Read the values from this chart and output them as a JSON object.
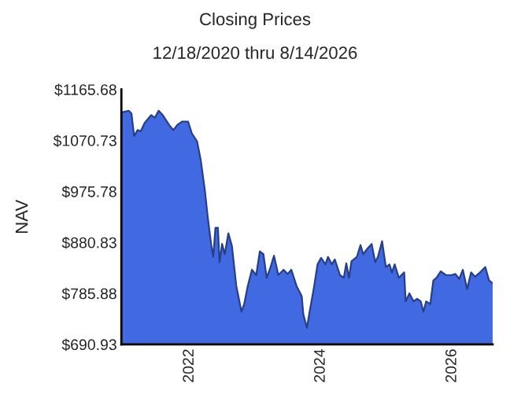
{
  "chart_data": {
    "type": "area",
    "title": "Closing Prices",
    "subtitle": "12/18/2020 thru 8/14/2026",
    "ylabel": "NAV",
    "x": [
      "2020-12-20",
      "2021-01-28",
      "2021-02-12",
      "2021-02-27",
      "2021-03-18",
      "2021-04-05",
      "2021-04-26",
      "2021-06-02",
      "2021-06-22",
      "2021-07-13",
      "2021-08-05",
      "2021-09-09",
      "2021-10-03",
      "2021-10-26",
      "2021-11-22",
      "2021-12-24",
      "2022-01-14",
      "2022-02-12",
      "2022-03-04",
      "2022-03-28",
      "2022-04-11",
      "2022-05-01",
      "2022-05-13",
      "2022-05-25",
      "2022-06-08",
      "2022-06-17",
      "2022-07-01",
      "2022-07-16",
      "2022-08-05",
      "2022-08-25",
      "2022-09-18",
      "2022-10-17",
      "2022-11-01",
      "2022-11-21",
      "2022-12-14",
      "2023-01-07",
      "2023-01-27",
      "2023-02-16",
      "2023-03-06",
      "2023-03-27",
      "2023-04-16",
      "2023-05-10",
      "2023-06-08",
      "2023-07-01",
      "2023-07-21",
      "2023-08-19",
      "2023-09-17",
      "2023-09-26",
      "2023-10-16",
      "2023-10-31",
      "2023-11-23",
      "2023-12-14",
      "2024-01-03",
      "2024-01-27",
      "2024-02-10",
      "2024-03-02",
      "2024-03-19",
      "2024-04-17",
      "2024-05-08",
      "2024-05-22",
      "2024-06-06",
      "2024-06-20",
      "2024-07-20",
      "2024-08-09",
      "2024-08-24",
      "2024-09-16",
      "2024-10-10",
      "2024-10-30",
      "2024-11-14",
      "2024-12-07",
      "2024-12-28",
      "2025-01-17",
      "2025-01-31",
      "2025-02-15",
      "2025-03-10",
      "2025-04-09",
      "2025-04-17",
      "2025-05-08",
      "2025-05-31",
      "2025-06-20",
      "2025-07-10",
      "2025-07-25",
      "2025-08-09",
      "2025-09-01",
      "2025-09-18",
      "2025-10-06",
      "2025-10-29",
      "2025-11-27",
      "2025-12-27",
      "2026-01-19",
      "2026-02-09",
      "2026-03-01",
      "2026-03-25",
      "2026-04-16",
      "2026-05-07",
      "2026-06-05",
      "2026-07-04",
      "2026-07-25",
      "2026-08-14"
    ],
    "series": [
      {
        "color": "#4169e1",
        "values": [
          1123,
          1126,
          1121,
          1079,
          1090,
          1088,
          1103,
          1118,
          1113,
          1126,
          1118,
          1100,
          1090,
          1100,
          1106,
          1106,
          1084,
          1069,
          1035,
          976,
          932,
          878,
          854,
          908,
          908,
          844,
          878,
          859,
          898,
          874,
          800,
          752,
          766,
          800,
          830,
          820,
          864,
          859,
          815,
          834,
          856,
          820,
          830,
          822,
          830,
          800,
          781,
          747,
          722,
          752,
          795,
          840,
          852,
          840,
          854,
          840,
          849,
          820,
          815,
          842,
          815,
          846,
          854,
          876,
          859,
          869,
          878,
          844,
          854,
          883,
          835,
          840,
          825,
          840,
          815,
          825,
          771,
          786,
          771,
          776,
          771,
          752,
          771,
          766,
          810,
          815,
          827,
          820,
          820,
          822,
          813,
          830,
          794,
          825,
          817,
          825,
          835,
          810,
          805
        ]
      }
    ],
    "xlim": [
      "2020-12-18",
      "2026-08-14"
    ],
    "xticks": [
      {
        "value": "2022-01-01",
        "label": "2022"
      },
      {
        "value": "2024-01-01",
        "label": "2024"
      },
      {
        "value": "2026-01-01",
        "label": "2026"
      }
    ],
    "ylim": [
      690.93,
      1165.68
    ],
    "yticks": [
      {
        "value": 690.93,
        "label": "$690.93"
      },
      {
        "value": 785.88,
        "label": "$785.88"
      },
      {
        "value": 880.83,
        "label": "$880.83"
      },
      {
        "value": 975.78,
        "label": "$975.78"
      },
      {
        "value": 1070.73,
        "label": "$1070.73"
      },
      {
        "value": 1165.68,
        "label": "$1165.68"
      }
    ],
    "grid": false,
    "legend": false
  }
}
